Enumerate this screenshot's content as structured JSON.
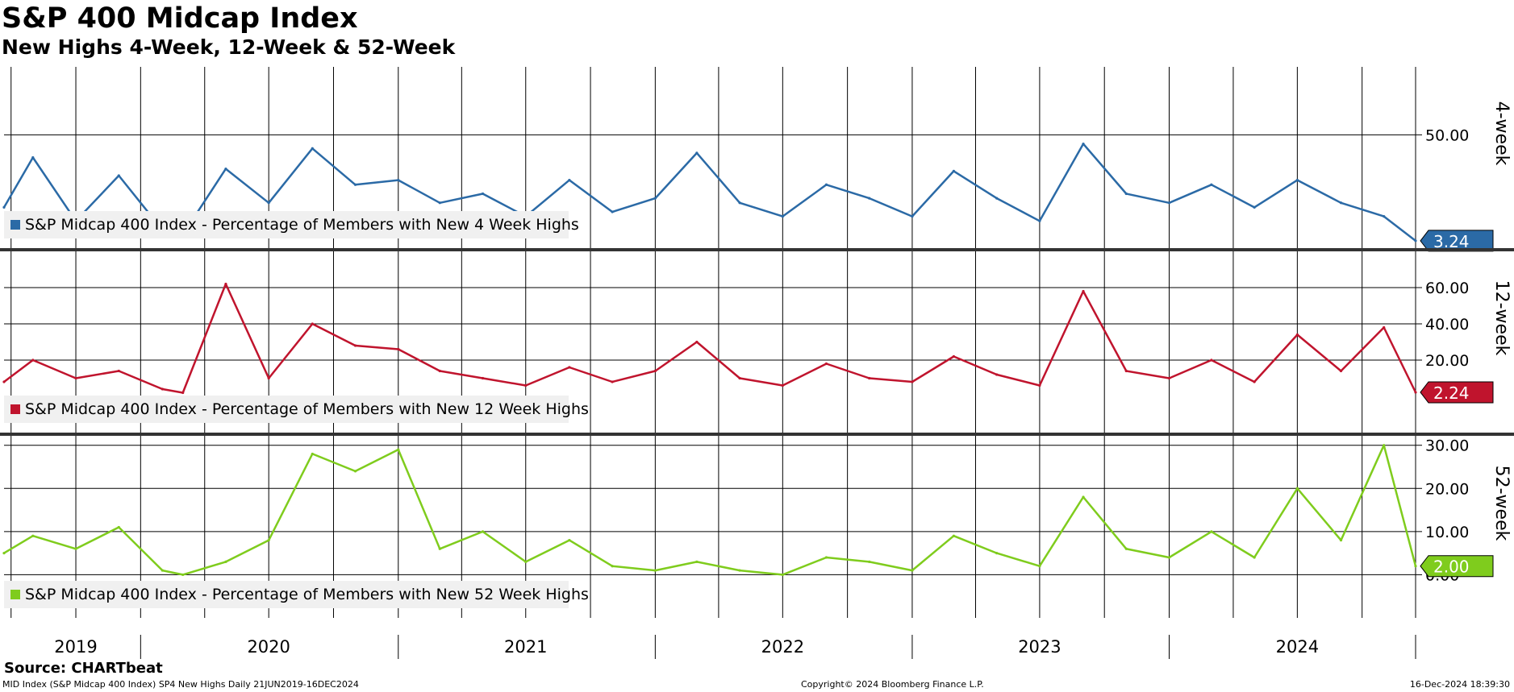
{
  "header": {
    "title": "S&P 400 Midcap Index",
    "subtitle": "New Highs 4-Week, 12-Week & 52-Week"
  },
  "footer": {
    "source": "Source: CHARTbeat",
    "left": "MID Index (S&P Midcap 400 Index) SP4 New Highs  Daily 21JUN2019-16DEC2024",
    "copyright": "Copyright© 2024 Bloomberg Finance L.P.",
    "timestamp": "16-Dec-2024 18:39:30"
  },
  "chart_data": [
    {
      "type": "line",
      "panel_label": "4-week",
      "legend": "S&P Midcap 400 Index - Percentage of Members with New 4 Week Highs",
      "color": "#2b6aa6",
      "last_value_label": "3.24",
      "last_value": 3.24,
      "y_ticks": [
        50
      ],
      "y_tick_labels": [
        "50.00"
      ],
      "ylim": [
        0,
        80
      ],
      "x": [
        "2019-06-21",
        "2019-08",
        "2019-10",
        "2019-12",
        "2020-02",
        "2020-03",
        "2020-05",
        "2020-07",
        "2020-09",
        "2020-11",
        "2021-01",
        "2021-03",
        "2021-05",
        "2021-07",
        "2021-09",
        "2021-11",
        "2022-01",
        "2022-03",
        "2022-05",
        "2022-07",
        "2022-09",
        "2022-11",
        "2023-01",
        "2023-03",
        "2023-05",
        "2023-07",
        "2023-09",
        "2023-11",
        "2024-01",
        "2024-03",
        "2024-05",
        "2024-07",
        "2024-09",
        "2024-11",
        "2024-12-16"
      ],
      "values": [
        18,
        40,
        12,
        32,
        8,
        6,
        35,
        20,
        44,
        28,
        30,
        20,
        24,
        14,
        30,
        16,
        22,
        42,
        20,
        14,
        28,
        22,
        14,
        34,
        22,
        12,
        46,
        24,
        20,
        28,
        18,
        30,
        20,
        14,
        3.24
      ]
    },
    {
      "type": "line",
      "panel_label": "12-week",
      "legend": "S&P Midcap 400 Index - Percentage of Members with New 12 Week Highs",
      "color": "#c0142d",
      "last_value_label": "2.24",
      "last_value": 2.24,
      "y_ticks": [
        20,
        40,
        60
      ],
      "y_tick_labels": [
        "20.00",
        "40.00",
        "60.00"
      ],
      "ylim": [
        -20,
        80
      ],
      "x": [
        "2019-06-21",
        "2019-08",
        "2019-10",
        "2019-12",
        "2020-02",
        "2020-03",
        "2020-05",
        "2020-07",
        "2020-09",
        "2020-11",
        "2021-01",
        "2021-03",
        "2021-05",
        "2021-07",
        "2021-09",
        "2021-11",
        "2022-01",
        "2022-03",
        "2022-05",
        "2022-07",
        "2022-09",
        "2022-11",
        "2023-01",
        "2023-03",
        "2023-05",
        "2023-07",
        "2023-09",
        "2023-11",
        "2024-01",
        "2024-03",
        "2024-05",
        "2024-07",
        "2024-09",
        "2024-11",
        "2024-12-16"
      ],
      "values": [
        8,
        20,
        10,
        14,
        4,
        2,
        62,
        10,
        40,
        28,
        26,
        14,
        10,
        6,
        16,
        8,
        14,
        30,
        10,
        6,
        18,
        10,
        8,
        22,
        12,
        6,
        58,
        14,
        10,
        20,
        8,
        34,
        14,
        38,
        2.24
      ]
    },
    {
      "type": "line",
      "panel_label": "52-week",
      "legend": "S&P Midcap 400 Index - Percentage of Members with New 52 Week Highs",
      "color": "#7fcc1d",
      "last_value_label": "2.00",
      "last_value": 2.0,
      "y_ticks": [
        0,
        10,
        20,
        30
      ],
      "y_tick_labels": [
        "0.00",
        "10.00",
        "20.00",
        "30.00"
      ],
      "ylim": [
        -10,
        32
      ],
      "x": [
        "2019-06-21",
        "2019-08",
        "2019-10",
        "2019-12",
        "2020-02",
        "2020-03",
        "2020-05",
        "2020-07",
        "2020-09",
        "2020-11",
        "2021-01",
        "2021-03",
        "2021-05",
        "2021-07",
        "2021-09",
        "2021-11",
        "2022-01",
        "2022-03",
        "2022-05",
        "2022-07",
        "2022-09",
        "2022-11",
        "2023-01",
        "2023-03",
        "2023-05",
        "2023-07",
        "2023-09",
        "2023-11",
        "2024-01",
        "2024-03",
        "2024-05",
        "2024-07",
        "2024-09",
        "2024-11",
        "2024-12-16"
      ],
      "values": [
        5,
        9,
        6,
        11,
        1,
        0,
        3,
        8,
        28,
        24,
        29,
        6,
        10,
        3,
        8,
        2,
        1,
        3,
        1,
        0,
        4,
        3,
        1,
        9,
        5,
        2,
        18,
        6,
        4,
        10,
        4,
        20,
        8,
        30,
        2.0
      ]
    }
  ],
  "x_axis": {
    "year_labels": [
      "2019",
      "2020",
      "2021",
      "2022",
      "2023",
      "2024"
    ]
  }
}
